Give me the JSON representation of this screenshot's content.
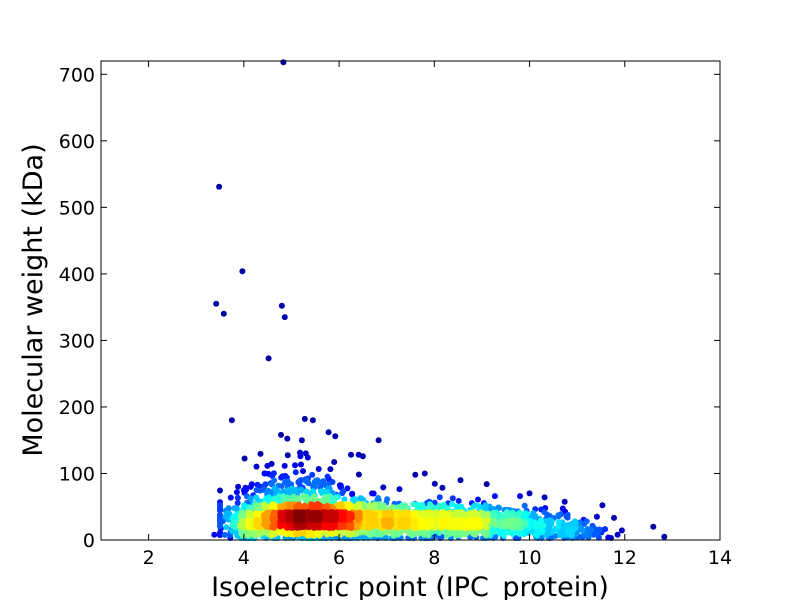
{
  "chart_data": {
    "type": "scatter",
    "title": "",
    "xlabel": "Isoelectric point (IPC_protein)",
    "ylabel": "Molecular weight (kDa)",
    "xlim": [
      1,
      14
    ],
    "ylim": [
      0,
      720
    ],
    "xticks": [
      2,
      4,
      6,
      8,
      10,
      12,
      14
    ],
    "yticks": [
      0,
      100,
      200,
      300,
      400,
      500,
      600,
      700
    ],
    "grid": false,
    "legend": "none",
    "colormap": "jet (point density)",
    "marker_color_low": "#00008f",
    "marker_color_high": "#800000",
    "outlier_points": [
      {
        "x": 4.83,
        "y": 718
      },
      {
        "x": 3.48,
        "y": 531
      },
      {
        "x": 3.97,
        "y": 404
      },
      {
        "x": 3.42,
        "y": 355
      },
      {
        "x": 4.8,
        "y": 352
      },
      {
        "x": 3.58,
        "y": 340
      },
      {
        "x": 4.86,
        "y": 335
      },
      {
        "x": 4.52,
        "y": 273
      },
      {
        "x": 3.75,
        "y": 180
      },
      {
        "x": 5.28,
        "y": 182
      },
      {
        "x": 5.45,
        "y": 180
      },
      {
        "x": 5.92,
        "y": 156
      },
      {
        "x": 4.78,
        "y": 158
      },
      {
        "x": 6.83,
        "y": 150
      },
      {
        "x": 5.22,
        "y": 150
      },
      {
        "x": 5.78,
        "y": 162
      },
      {
        "x": 6.25,
        "y": 128
      },
      {
        "x": 6.5,
        "y": 126
      },
      {
        "x": 7.8,
        "y": 100
      },
      {
        "x": 8.55,
        "y": 90
      },
      {
        "x": 10.0,
        "y": 70
      },
      {
        "x": 10.8,
        "y": 38
      },
      {
        "x": 11.85,
        "y": 8
      },
      {
        "x": 12.83,
        "y": 5
      },
      {
        "x": 3.38,
        "y": 8
      },
      {
        "x": 3.88,
        "y": 80
      },
      {
        "x": 7.6,
        "y": 98
      },
      {
        "x": 9.1,
        "y": 84
      },
      {
        "x": 9.8,
        "y": 66
      },
      {
        "x": 11.2,
        "y": 28
      },
      {
        "x": 11.5,
        "y": 12
      },
      {
        "x": 10.4,
        "y": 22
      }
    ],
    "density_clusters": [
      {
        "cx": 5.3,
        "cy": 32,
        "sx": 0.75,
        "sy": 16,
        "n": 1500
      },
      {
        "cx": 5.1,
        "cy": 70,
        "sx": 0.55,
        "sy": 28,
        "n": 220
      },
      {
        "cx": 8.5,
        "cy": 28,
        "sx": 0.95,
        "sy": 14,
        "n": 900
      },
      {
        "cx": 6.9,
        "cy": 30,
        "sx": 0.7,
        "sy": 20,
        "n": 500
      },
      {
        "cx": 10.3,
        "cy": 18,
        "sx": 0.65,
        "sy": 10,
        "n": 160
      },
      {
        "cx": 4.2,
        "cy": 18,
        "sx": 0.25,
        "sy": 14,
        "n": 140
      },
      {
        "cx": 11.2,
        "cy": 12,
        "sx": 0.35,
        "sy": 6,
        "n": 40
      }
    ]
  }
}
